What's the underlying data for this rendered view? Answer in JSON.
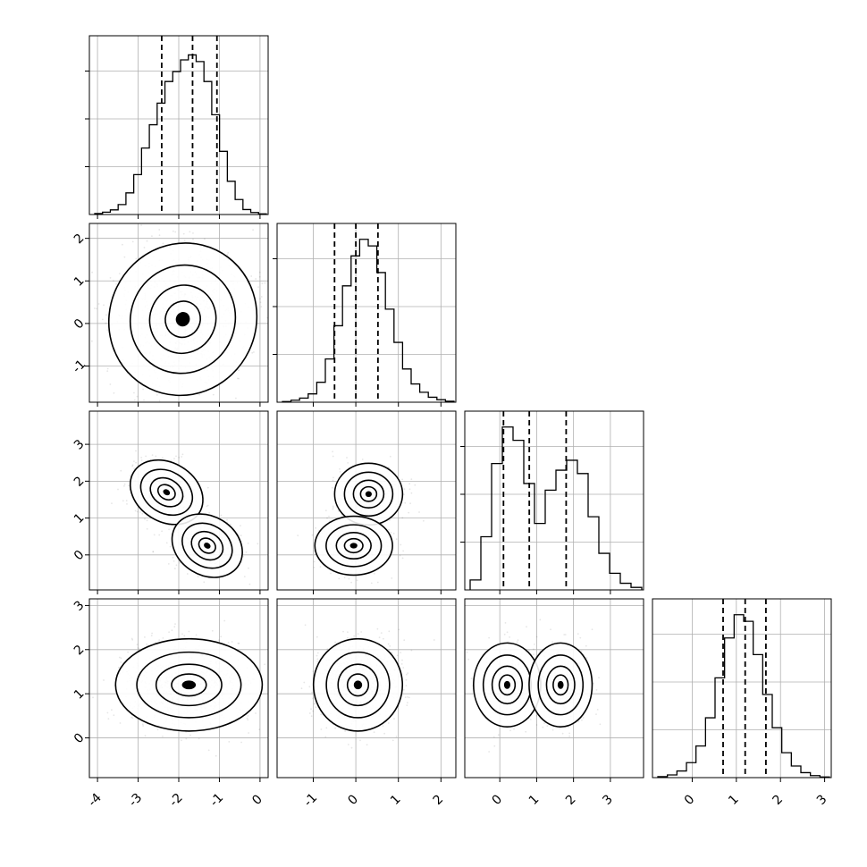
{
  "chart_data": {
    "type": "scatter",
    "variables": [
      {
        "range": [
          -4.2,
          0.2
        ],
        "ticks": [
          -4,
          -3,
          -2,
          -1,
          0
        ],
        "hist": [
          0.006,
          0.014,
          0.028,
          0.06,
          0.13,
          0.24,
          0.4,
          0.54,
          0.67,
          0.8,
          0.86,
          0.93,
          0.96,
          0.92,
          0.8,
          0.6,
          0.38,
          0.2,
          0.09,
          0.03,
          0.012,
          0.004
        ],
        "quantiles": [
          -2.42,
          -1.66,
          -1.06
        ]
      },
      {
        "range": [
          -1.85,
          2.35
        ],
        "ticks": [
          -1,
          0,
          1,
          2
        ],
        "hist": [
          0.004,
          0.012,
          0.025,
          0.05,
          0.12,
          0.26,
          0.46,
          0.7,
          0.88,
          0.98,
          0.94,
          0.78,
          0.56,
          0.36,
          0.2,
          0.11,
          0.06,
          0.03,
          0.015,
          0.006
        ],
        "quantiles": [
          -0.5,
          0.0,
          0.52
        ]
      },
      {
        "range": [
          -0.95,
          3.9
        ],
        "ticks": [
          0,
          1,
          2,
          3
        ],
        "hist": [
          0.06,
          0.32,
          0.76,
          0.98,
          0.9,
          0.64,
          0.4,
          0.6,
          0.72,
          0.78,
          0.7,
          0.44,
          0.22,
          0.1,
          0.04,
          0.015
        ],
        "quantiles": [
          0.1,
          0.8,
          1.8
        ]
      },
      {
        "range": [
          -0.9,
          3.15
        ],
        "ticks": [
          0,
          1,
          2,
          3
        ],
        "hist": [
          0.006,
          0.016,
          0.04,
          0.09,
          0.19,
          0.36,
          0.6,
          0.84,
          0.98,
          0.94,
          0.74,
          0.5,
          0.3,
          0.15,
          0.07,
          0.03,
          0.012,
          0.004
        ],
        "quantiles": [
          0.7,
          1.2,
          1.67
        ]
      }
    ],
    "ellipses": {
      "1-0": [
        [
          -1.9,
          0.1,
          0.95,
          0.95,
          -0.45
        ]
      ],
      "2-0": [
        [
          -2.3,
          1.7,
          0.5,
          0.42,
          -0.55
        ],
        [
          -1.3,
          0.25,
          0.48,
          0.42,
          -0.55
        ]
      ],
      "2-1": [
        [
          0.3,
          1.65,
          0.42,
          0.44,
          0
        ],
        [
          -0.05,
          0.25,
          0.48,
          0.42,
          0
        ]
      ],
      "3-0": [
        [
          -1.75,
          1.2,
          0.95,
          0.55,
          0
        ]
      ],
      "3-1": [
        [
          0.05,
          1.2,
          0.55,
          0.55,
          0
        ]
      ],
      "3-2": [
        [
          0.2,
          1.2,
          0.48,
          0.5,
          0
        ],
        [
          1.65,
          1.2,
          0.45,
          0.5,
          0
        ]
      ]
    },
    "ylim": {
      "1": [
        -1.85,
        2.35
      ],
      "2": [
        -0.95,
        3.9
      ],
      "3": [
        -0.9,
        3.15
      ]
    },
    "grid": true,
    "legend": "none"
  }
}
